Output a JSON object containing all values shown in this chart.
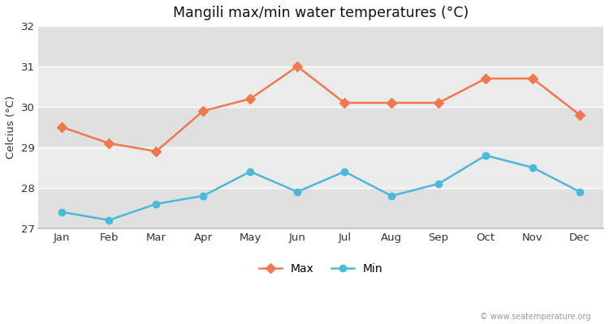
{
  "months": [
    "Jan",
    "Feb",
    "Mar",
    "Apr",
    "May",
    "Jun",
    "Jul",
    "Aug",
    "Sep",
    "Oct",
    "Nov",
    "Dec"
  ],
  "max_temps": [
    29.5,
    29.1,
    28.9,
    29.9,
    30.2,
    31.0,
    30.1,
    30.1,
    30.1,
    30.7,
    30.7,
    29.8
  ],
  "min_temps": [
    27.4,
    27.2,
    27.6,
    27.8,
    28.4,
    27.9,
    28.4,
    27.8,
    28.1,
    28.8,
    28.5,
    27.9
  ],
  "max_color": "#f07850",
  "min_color": "#4db8d8",
  "title": "Mangili max/min water temperatures (°C)",
  "ylabel": "Celcius (°C)",
  "ylim": [
    27,
    32
  ],
  "yticks": [
    27,
    28,
    29,
    30,
    31,
    32
  ],
  "band_colors": [
    "#e8e8e8",
    "#f2f2f2",
    "#e8e8e8",
    "#f2f2f2",
    "#e8e8e8"
  ],
  "outer_bg": "#ffffff",
  "plot_bg": "#e8e8e8",
  "bottom_bg": "#f0f0f0",
  "watermark": "© www.seatemperature.org",
  "legend_max": "Max",
  "legend_min": "Min"
}
